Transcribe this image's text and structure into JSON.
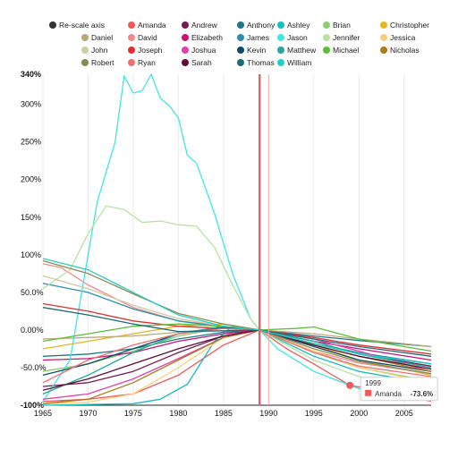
{
  "chart_data": {
    "type": "line",
    "x_range": [
      1965,
      2008
    ],
    "y_range": [
      -100,
      340
    ],
    "y_ticks": [
      {
        "value": 340,
        "label": "340%"
      },
      {
        "value": 300,
        "label": "300%"
      },
      {
        "value": 250,
        "label": "250%"
      },
      {
        "value": 200,
        "label": "200%"
      },
      {
        "value": 150,
        "label": "150%"
      },
      {
        "value": 100,
        "label": "100%"
      },
      {
        "value": 50,
        "label": "50.0%"
      },
      {
        "value": 0,
        "label": "0.00%"
      },
      {
        "value": -50,
        "label": "-50.0%"
      },
      {
        "value": -100,
        "label": "-100%"
      }
    ],
    "x_ticks": [
      {
        "value": 1965,
        "label": "1965"
      },
      {
        "value": 1970,
        "label": "1970"
      },
      {
        "value": 1975,
        "label": "1975"
      },
      {
        "value": 1980,
        "label": "1980"
      },
      {
        "value": 1985,
        "label": "1985"
      },
      {
        "value": 1990,
        "label": "1990"
      },
      {
        "value": 1995,
        "label": "1995"
      },
      {
        "value": 2000,
        "label": "2000"
      },
      {
        "value": 2005,
        "label": "2005"
      }
    ],
    "rescale_label": "Re-scale axis",
    "reference_year": 1989,
    "hover_year": 1990,
    "tooltip": {
      "year": "1999",
      "series": "Amanda",
      "value": "-73.6%"
    },
    "series": [
      {
        "name": "Amanda",
        "color": "#f05a5a",
        "points": [
          [
            1965,
            -95
          ],
          [
            1970,
            -92
          ],
          [
            1975,
            -85
          ],
          [
            1980,
            -60
          ],
          [
            1985,
            -20
          ],
          [
            1989,
            0
          ],
          [
            1992,
            -25
          ],
          [
            1995,
            -45
          ],
          [
            1999,
            -73.6
          ],
          [
            2003,
            -82
          ],
          [
            2008,
            -95
          ]
        ]
      },
      {
        "name": "Andrew",
        "color": "#7a1b54",
        "points": [
          [
            1965,
            -75
          ],
          [
            1970,
            -70
          ],
          [
            1975,
            -55
          ],
          [
            1980,
            -30
          ],
          [
            1985,
            -8
          ],
          [
            1989,
            0
          ],
          [
            1995,
            -18
          ],
          [
            2000,
            -32
          ],
          [
            2008,
            -48
          ]
        ]
      },
      {
        "name": "Anthony",
        "color": "#1b7a8c",
        "points": [
          [
            1965,
            -35
          ],
          [
            1970,
            -32
          ],
          [
            1975,
            -25
          ],
          [
            1980,
            -12
          ],
          [
            1985,
            -3
          ],
          [
            1989,
            0
          ],
          [
            1995,
            -8
          ],
          [
            2000,
            -14
          ],
          [
            2008,
            -22
          ]
        ]
      },
      {
        "name": "Ashley",
        "color": "#17bcc4",
        "points": [
          [
            1965,
            -100
          ],
          [
            1970,
            -99
          ],
          [
            1975,
            -98
          ],
          [
            1978,
            -92
          ],
          [
            1981,
            -72
          ],
          [
            1984,
            -15
          ],
          [
            1986,
            5
          ],
          [
            1989,
            0
          ],
          [
            1995,
            -35
          ],
          [
            2000,
            -55
          ],
          [
            2008,
            -72
          ]
        ]
      },
      {
        "name": "Brian",
        "color": "#8ccf6b",
        "points": [
          [
            1965,
            -55
          ],
          [
            1970,
            -45
          ],
          [
            1975,
            -28
          ],
          [
            1980,
            -8
          ],
          [
            1985,
            3
          ],
          [
            1989,
            0
          ],
          [
            1995,
            -30
          ],
          [
            2000,
            -50
          ],
          [
            2008,
            -68
          ]
        ]
      },
      {
        "name": "Christopher",
        "color": "#e9b620",
        "points": [
          [
            1965,
            -25
          ],
          [
            1970,
            -15
          ],
          [
            1975,
            -5
          ],
          [
            1980,
            5
          ],
          [
            1985,
            8
          ],
          [
            1989,
            0
          ],
          [
            1995,
            -20
          ],
          [
            2000,
            -40
          ],
          [
            2008,
            -60
          ]
        ]
      },
      {
        "name": "Daniel",
        "color": "#b8a878",
        "points": [
          [
            1965,
            -12
          ],
          [
            1970,
            -10
          ],
          [
            1975,
            -8
          ],
          [
            1980,
            -3
          ],
          [
            1985,
            2
          ],
          [
            1989,
            0
          ],
          [
            1995,
            -5
          ],
          [
            2000,
            -12
          ],
          [
            2008,
            -22
          ]
        ]
      },
      {
        "name": "David",
        "color": "#f08a8a",
        "points": [
          [
            1965,
            88
          ],
          [
            1967,
            83
          ],
          [
            1970,
            60
          ],
          [
            1975,
            30
          ],
          [
            1980,
            12
          ],
          [
            1985,
            5
          ],
          [
            1989,
            0
          ],
          [
            1995,
            -28
          ],
          [
            2000,
            -44
          ],
          [
            2008,
            -58
          ]
        ]
      },
      {
        "name": "Elizabeth",
        "color": "#c8137a",
        "points": [
          [
            1965,
            -40
          ],
          [
            1970,
            -38
          ],
          [
            1975,
            -30
          ],
          [
            1980,
            -15
          ],
          [
            1985,
            -5
          ],
          [
            1989,
            0
          ],
          [
            1995,
            -15
          ],
          [
            2000,
            -25
          ],
          [
            2008,
            -40
          ]
        ]
      },
      {
        "name": "James",
        "color": "#2a8fb0",
        "points": [
          [
            1965,
            62
          ],
          [
            1970,
            50
          ],
          [
            1975,
            28
          ],
          [
            1980,
            12
          ],
          [
            1985,
            4
          ],
          [
            1989,
            0
          ],
          [
            1995,
            -18
          ],
          [
            2000,
            -30
          ],
          [
            2008,
            -45
          ]
        ]
      },
      {
        "name": "Jason",
        "color": "#3fe6e6",
        "points": [
          [
            1965,
            -95
          ],
          [
            1968,
            -40
          ],
          [
            1971,
            170
          ],
          [
            1973,
            250
          ],
          [
            1974,
            338
          ],
          [
            1975,
            315
          ],
          [
            1976,
            318
          ],
          [
            1977,
            340
          ],
          [
            1978,
            308
          ],
          [
            1979,
            298
          ],
          [
            1980,
            282
          ],
          [
            1981,
            232
          ],
          [
            1982,
            222
          ],
          [
            1984,
            155
          ],
          [
            1986,
            75
          ],
          [
            1988,
            15
          ],
          [
            1989,
            0
          ],
          [
            1991,
            -25
          ],
          [
            1995,
            -55
          ],
          [
            2000,
            -78
          ],
          [
            2008,
            -92
          ]
        ]
      },
      {
        "name": "Jennifer",
        "color": "#b7e2a0",
        "points": [
          [
            1965,
            55
          ],
          [
            1968,
            80
          ],
          [
            1970,
            128
          ],
          [
            1972,
            165
          ],
          [
            1974,
            160
          ],
          [
            1976,
            143
          ],
          [
            1978,
            145
          ],
          [
            1980,
            140
          ],
          [
            1982,
            138
          ],
          [
            1984,
            110
          ],
          [
            1986,
            60
          ],
          [
            1988,
            15
          ],
          [
            1989,
            0
          ],
          [
            1995,
            -40
          ],
          [
            2000,
            -62
          ],
          [
            2008,
            -80
          ]
        ]
      },
      {
        "name": "Jessica",
        "color": "#f6cf7a",
        "points": [
          [
            1965,
            -98
          ],
          [
            1970,
            -96
          ],
          [
            1975,
            -85
          ],
          [
            1980,
            -50
          ],
          [
            1985,
            -10
          ],
          [
            1989,
            0
          ],
          [
            1995,
            -28
          ],
          [
            2000,
            -50
          ],
          [
            2008,
            -70
          ]
        ]
      },
      {
        "name": "John",
        "color": "#cfcaa4",
        "points": [
          [
            1965,
            72
          ],
          [
            1970,
            55
          ],
          [
            1975,
            33
          ],
          [
            1980,
            15
          ],
          [
            1985,
            5
          ],
          [
            1989,
            0
          ],
          [
            1995,
            -20
          ],
          [
            2000,
            -35
          ],
          [
            2008,
            -50
          ]
        ]
      },
      {
        "name": "Joseph",
        "color": "#e03030",
        "points": [
          [
            1965,
            35
          ],
          [
            1970,
            25
          ],
          [
            1975,
            12
          ],
          [
            1980,
            5
          ],
          [
            1985,
            2
          ],
          [
            1989,
            0
          ],
          [
            1995,
            -10
          ],
          [
            2000,
            -20
          ],
          [
            2008,
            -32
          ]
        ]
      },
      {
        "name": "Joshua",
        "color": "#e040b0",
        "points": [
          [
            1965,
            -92
          ],
          [
            1970,
            -85
          ],
          [
            1975,
            -65
          ],
          [
            1980,
            -38
          ],
          [
            1985,
            -10
          ],
          [
            1989,
            0
          ],
          [
            1995,
            -12
          ],
          [
            2000,
            -28
          ],
          [
            2008,
            -55
          ]
        ]
      },
      {
        "name": "Kevin",
        "color": "#0d4a6a",
        "points": [
          [
            1965,
            -60
          ],
          [
            1970,
            -45
          ],
          [
            1975,
            -25
          ],
          [
            1980,
            -5
          ],
          [
            1985,
            3
          ],
          [
            1989,
            0
          ],
          [
            1995,
            -22
          ],
          [
            2000,
            -40
          ],
          [
            2008,
            -55
          ]
        ]
      },
      {
        "name": "Matthew",
        "color": "#24a89a",
        "points": [
          [
            1965,
            -85
          ],
          [
            1970,
            -60
          ],
          [
            1975,
            -30
          ],
          [
            1980,
            -5
          ],
          [
            1985,
            5
          ],
          [
            1989,
            0
          ],
          [
            1995,
            -15
          ],
          [
            2000,
            -32
          ],
          [
            2008,
            -50
          ]
        ]
      },
      {
        "name": "Michael",
        "color": "#5cbf3a",
        "points": [
          [
            1965,
            -15
          ],
          [
            1970,
            -5
          ],
          [
            1975,
            5
          ],
          [
            1980,
            8
          ],
          [
            1985,
            5
          ],
          [
            1989,
            0
          ],
          [
            1993,
            2
          ],
          [
            1995,
            4
          ],
          [
            2000,
            -12
          ],
          [
            2008,
            -28
          ]
        ]
      },
      {
        "name": "Nicholas",
        "color": "#b07a1a",
        "points": [
          [
            1965,
            -98
          ],
          [
            1970,
            -92
          ],
          [
            1975,
            -70
          ],
          [
            1980,
            -40
          ],
          [
            1985,
            -10
          ],
          [
            1989,
            0
          ],
          [
            1995,
            -20
          ],
          [
            2000,
            -35
          ],
          [
            2008,
            -55
          ]
        ]
      },
      {
        "name": "Robert",
        "color": "#8a8a50",
        "points": [
          [
            1965,
            92
          ],
          [
            1970,
            75
          ],
          [
            1975,
            48
          ],
          [
            1980,
            22
          ],
          [
            1985,
            8
          ],
          [
            1989,
            0
          ],
          [
            1995,
            -25
          ],
          [
            2000,
            -42
          ],
          [
            2008,
            -58
          ]
        ]
      },
      {
        "name": "Ryan",
        "color": "#f07070",
        "points": [
          [
            1965,
            -70
          ],
          [
            1970,
            -40
          ],
          [
            1975,
            -20
          ],
          [
            1980,
            -5
          ],
          [
            1985,
            2
          ],
          [
            1989,
            0
          ],
          [
            1995,
            -30
          ],
          [
            2000,
            -48
          ],
          [
            2008,
            -62
          ]
        ]
      },
      {
        "name": "Sarah",
        "color": "#5a1038",
        "points": [
          [
            1965,
            -80
          ],
          [
            1970,
            -65
          ],
          [
            1975,
            -45
          ],
          [
            1980,
            -25
          ],
          [
            1985,
            -8
          ],
          [
            1989,
            0
          ],
          [
            1995,
            -20
          ],
          [
            2000,
            -35
          ],
          [
            2008,
            -52
          ]
        ]
      },
      {
        "name": "Thomas",
        "color": "#1a6a78",
        "points": [
          [
            1965,
            30
          ],
          [
            1970,
            20
          ],
          [
            1975,
            8
          ],
          [
            1980,
            -2
          ],
          [
            1985,
            -1
          ],
          [
            1989,
            0
          ],
          [
            1995,
            -12
          ],
          [
            2000,
            -22
          ],
          [
            2008,
            -35
          ]
        ]
      },
      {
        "name": "William",
        "color": "#22cfc0",
        "points": [
          [
            1965,
            95
          ],
          [
            1970,
            80
          ],
          [
            1975,
            50
          ],
          [
            1980,
            20
          ],
          [
            1985,
            5
          ],
          [
            1989,
            0
          ],
          [
            1995,
            -18
          ],
          [
            2000,
            -32
          ],
          [
            2008,
            -45
          ]
        ]
      }
    ]
  }
}
